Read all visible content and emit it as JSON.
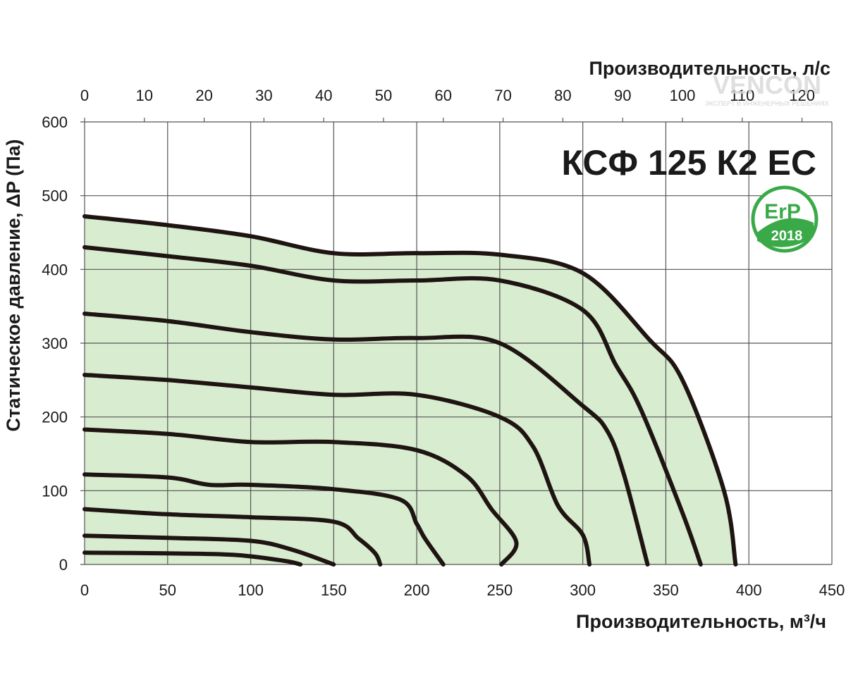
{
  "chart_data": {
    "type": "line",
    "title": "КСФ 125 К2 ЕС",
    "xlabel": "Производительность, м³/ч",
    "x2label": "Производительность, л/с",
    "ylabel": "Статическое давление, ΔP (Па)",
    "xlim": [
      0,
      450
    ],
    "ylim": [
      0,
      600
    ],
    "x2lim": [
      0,
      125
    ],
    "x_ticks": [
      "0",
      "50",
      "100",
      "150",
      "200",
      "250",
      "300",
      "350",
      "400",
      "450"
    ],
    "y_ticks": [
      "0",
      "100",
      "200",
      "300",
      "400",
      "500",
      "600"
    ],
    "x2_ticks": [
      "0",
      "10",
      "20",
      "30",
      "40",
      "50",
      "60",
      "70",
      "80",
      "90",
      "100",
      "110",
      "120"
    ],
    "grid": true,
    "fill_color": "#d8eccf",
    "curve_color": "#1e1412",
    "series": [
      {
        "x": [
          0,
          50,
          100,
          150,
          200,
          250,
          300,
          340,
          360,
          385,
          392
        ],
        "y": [
          472,
          460,
          445,
          422,
          422,
          420,
          395,
          305,
          250,
          100,
          0
        ]
      },
      {
        "x": [
          0,
          50,
          100,
          150,
          200,
          250,
          300,
          320,
          335,
          360,
          371
        ],
        "y": [
          430,
          418,
          405,
          385,
          385,
          385,
          345,
          270,
          210,
          70,
          0
        ]
      },
      {
        "x": [
          0,
          50,
          100,
          150,
          200,
          250,
          300,
          315,
          325,
          339
        ],
        "y": [
          340,
          330,
          315,
          305,
          307,
          300,
          215,
          180,
          120,
          0
        ]
      },
      {
        "x": [
          0,
          50,
          100,
          150,
          200,
          250,
          270,
          285,
          300,
          304
        ],
        "y": [
          257,
          250,
          240,
          230,
          230,
          200,
          160,
          80,
          40,
          0
        ]
      },
      {
        "x": [
          0,
          50,
          100,
          150,
          200,
          230,
          245,
          260,
          251
        ],
        "y": [
          183,
          177,
          166,
          166,
          155,
          120,
          75,
          30,
          0
        ]
      },
      {
        "x": [
          0,
          50,
          75,
          100,
          150,
          190,
          200,
          205,
          216
        ],
        "y": [
          122,
          118,
          108,
          108,
          102,
          88,
          55,
          35,
          0
        ]
      },
      {
        "x": [
          0,
          50,
          100,
          150,
          165,
          175,
          178
        ],
        "y": [
          75,
          68,
          64,
          58,
          35,
          15,
          0
        ]
      },
      {
        "x": [
          0,
          50,
          100,
          125,
          150
        ],
        "y": [
          39,
          36,
          32,
          20,
          0
        ]
      },
      {
        "x": [
          0,
          50,
          90,
          120,
          130
        ],
        "y": [
          16,
          15,
          13,
          5,
          0
        ]
      }
    ]
  },
  "badge": {
    "line1": "ErP",
    "line2": "2018",
    "color": "#3aaa48"
  },
  "watermark": {
    "brand": "VENCON",
    "tagline": "ЭКСПЕРТ В ИНЖЕНЕРНЫХ РЕШЕНИЯХ"
  }
}
